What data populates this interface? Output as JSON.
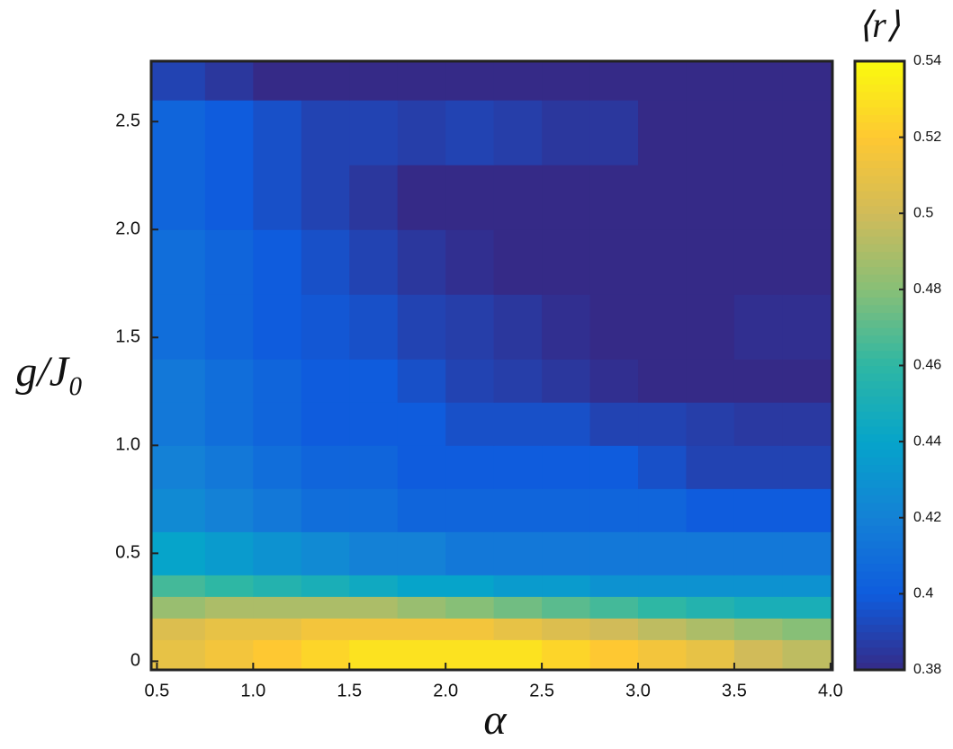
{
  "chart_data": {
    "type": "heatmap",
    "xlabel": "α",
    "ylabel": "g/J₀",
    "colorbar_label": "⟨r⟩",
    "xbins": [
      0.47,
      0.75,
      1.0,
      1.25,
      1.5,
      1.75,
      2.0,
      2.25,
      2.5,
      2.75,
      3.0,
      3.25,
      3.5,
      3.75,
      4.01
    ],
    "ybins": [
      -0.04,
      0.1,
      0.2,
      0.3,
      0.4,
      0.6,
      0.8,
      1.0,
      1.2,
      1.4,
      1.7,
      2.0,
      2.3,
      2.6,
      2.78
    ],
    "z": [
      [
        0.51,
        0.515,
        0.52,
        0.525,
        0.53,
        0.53,
        0.53,
        0.53,
        0.525,
        0.52,
        0.515,
        0.51,
        0.5,
        0.495
      ],
      [
        0.505,
        0.51,
        0.51,
        0.515,
        0.515,
        0.515,
        0.515,
        0.51,
        0.505,
        0.5,
        0.495,
        0.49,
        0.485,
        0.48
      ],
      [
        0.485,
        0.49,
        0.49,
        0.49,
        0.49,
        0.485,
        0.48,
        0.475,
        0.47,
        0.465,
        0.46,
        0.455,
        0.45,
        0.45
      ],
      [
        0.465,
        0.46,
        0.455,
        0.45,
        0.445,
        0.44,
        0.44,
        0.435,
        0.435,
        0.43,
        0.43,
        0.43,
        0.43,
        0.43
      ],
      [
        0.44,
        0.435,
        0.43,
        0.425,
        0.42,
        0.42,
        0.415,
        0.415,
        0.415,
        0.415,
        0.415,
        0.415,
        0.415,
        0.415
      ],
      [
        0.425,
        0.42,
        0.415,
        0.41,
        0.41,
        0.405,
        0.405,
        0.405,
        0.405,
        0.405,
        0.405,
        0.4,
        0.4,
        0.4
      ],
      [
        0.42,
        0.415,
        0.41,
        0.405,
        0.405,
        0.4,
        0.4,
        0.4,
        0.4,
        0.4,
        0.395,
        0.39,
        0.39,
        0.39
      ],
      [
        0.415,
        0.41,
        0.405,
        0.4,
        0.4,
        0.4,
        0.395,
        0.395,
        0.395,
        0.39,
        0.39,
        0.388,
        0.386,
        0.386
      ],
      [
        0.415,
        0.41,
        0.405,
        0.4,
        0.4,
        0.395,
        0.39,
        0.388,
        0.385,
        0.382,
        0.38,
        0.38,
        0.38,
        0.38
      ],
      [
        0.41,
        0.405,
        0.4,
        0.398,
        0.395,
        0.39,
        0.388,
        0.385,
        0.382,
        0.38,
        0.38,
        0.38,
        0.382,
        0.382
      ],
      [
        0.41,
        0.405,
        0.4,
        0.395,
        0.39,
        0.385,
        0.382,
        0.38,
        0.38,
        0.38,
        0.38,
        0.38,
        0.38,
        0.38
      ],
      [
        0.405,
        0.4,
        0.395,
        0.39,
        0.385,
        0.38,
        0.38,
        0.38,
        0.38,
        0.38,
        0.38,
        0.38,
        0.38,
        0.38
      ],
      [
        0.405,
        0.4,
        0.395,
        0.39,
        0.39,
        0.388,
        0.39,
        0.388,
        0.385,
        0.385,
        0.38,
        0.38,
        0.38,
        0.38
      ],
      [
        0.39,
        0.385,
        0.38,
        0.38,
        0.38,
        0.38,
        0.38,
        0.38,
        0.38,
        0.38,
        0.38,
        0.38,
        0.38,
        0.38
      ]
    ],
    "xlim": [
      0.47,
      4.01
    ],
    "ylim": [
      -0.04,
      2.78
    ],
    "xticks": [
      0.5,
      {
        "value": 1,
        "label": "1.0"
      },
      1.5,
      {
        "value": 2,
        "label": "2.0"
      },
      2.5,
      {
        "value": 3,
        "label": "3.0"
      },
      3.5,
      {
        "value": 4,
        "label": "4.0"
      }
    ],
    "yticks": [
      0,
      0.5,
      {
        "value": 1,
        "label": "1.0"
      },
      1.5,
      {
        "value": 2,
        "label": "2.0"
      },
      2.5
    ],
    "clim": [
      0.38,
      0.54
    ],
    "cticks": [
      0.38,
      0.4,
      0.42,
      0.44,
      0.46,
      0.48,
      0.5,
      0.52,
      0.54
    ],
    "colormap": [
      "#352a87",
      "#0f5cdd",
      "#1481d6",
      "#06a4ca",
      "#2eb7a4",
      "#87bf77",
      "#d1bb59",
      "#fec832",
      "#f9fb0e"
    ]
  }
}
